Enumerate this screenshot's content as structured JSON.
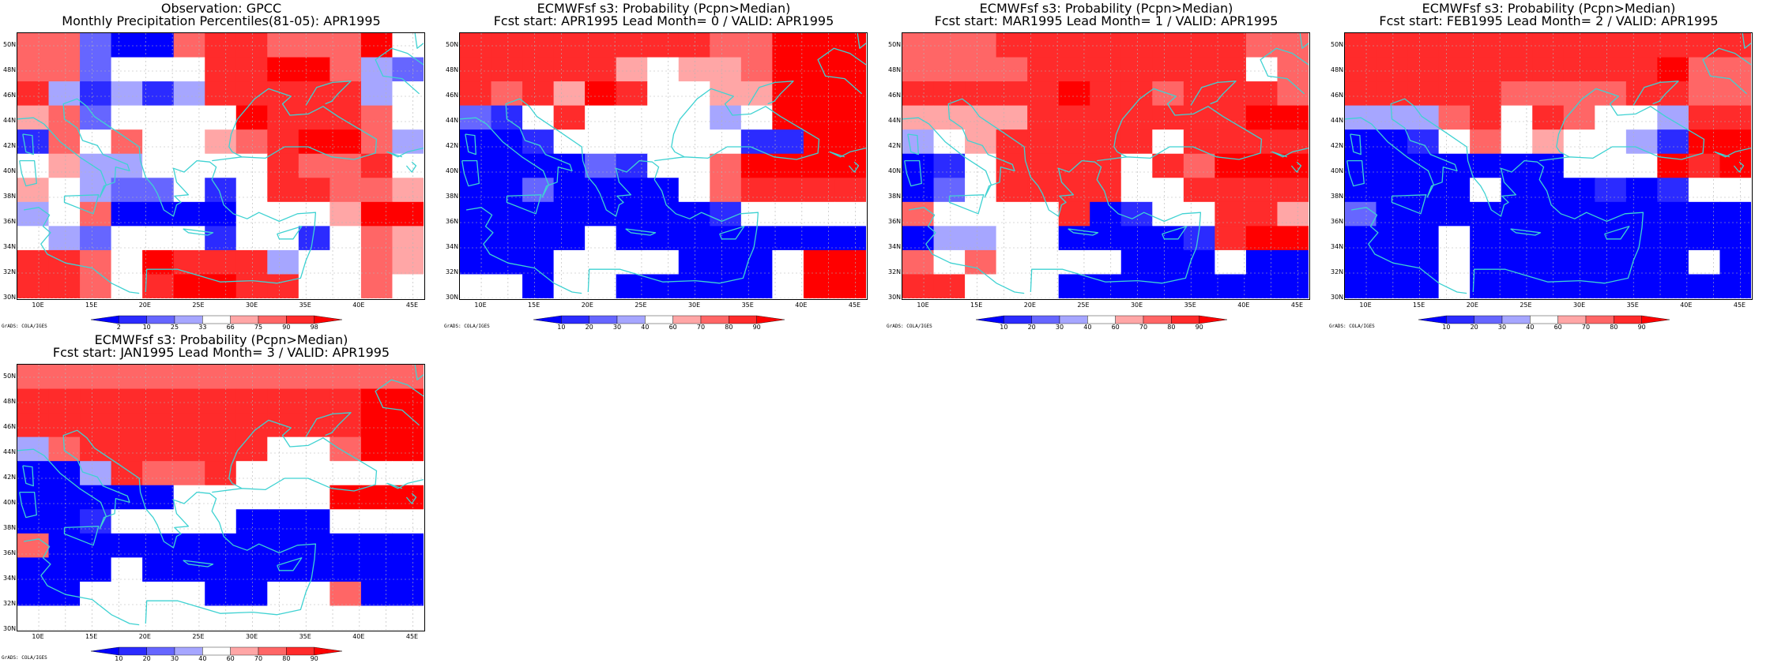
{
  "colors": {
    "levels": [
      "#0000ff",
      "#2b2bff",
      "#6666ff",
      "#a6a6ff",
      "#ffffff",
      "#ffa6a6",
      "#ff6666",
      "#ff2b2b",
      "#ff0000"
    ],
    "coast": "#3fd2d2",
    "grid": "#b4b4b4"
  },
  "map": {
    "lon_range": [
      8,
      46
    ],
    "lat_range": [
      30,
      51
    ],
    "x_ticks": [
      "10E",
      "15E",
      "20E",
      "25E",
      "30E",
      "35E",
      "40E",
      "45E"
    ],
    "y_ticks": [
      "30N",
      "32N",
      "34N",
      "36N",
      "38N",
      "40N",
      "42N",
      "44N",
      "46N",
      "48N",
      "50N"
    ],
    "grid_step_deg": 2.5
  },
  "credit": "GrADS: COLA/IGES",
  "panels": [
    {
      "title1": "Observation: GPCC",
      "title2": "Monthly Precipitation Percentiles(81-05): APR1995",
      "colorbar_labels": [
        "2",
        "10",
        "25",
        "33",
        "66",
        "75",
        "90",
        "98"
      ],
      "grid": [
        "6620067766684",
        "6624447788632",
        "7313137777734",
        "5624444877764",
        "1646445678863",
        "4533444476674",
        "5432241477665",
        "3460000444588",
        "4324441441465",
        "7764877734465",
        "7764788774464"
      ]
    },
    {
      "title1": "ECMWFsf s3: Probability (Pcpn>Median)",
      "title2": "Fcst start: APR1995  Lead Month= 0 / VALID: APR1995",
      "colorbar_labels": [
        "10",
        "20",
        "30",
        "40",
        "60",
        "70",
        "80",
        "90"
      ],
      "grid": [
        "7777777766888",
        "7777754556888",
        "7675874455888",
        "2147444434888",
        "0014444441188",
        "0000214468888",
        "0020000467777",
        "0000000014444",
        "0000400000000",
        "0004444000488",
        "4404400000488"
      ]
    },
    {
      "title1": "ECMWFsf s3: Probability (Pcpn>Median)",
      "title2": "Fcst start: MAR1995  Lead Month= 1 / VALID: APR1995",
      "colorbar_labels": [
        "10",
        "20",
        "30",
        "40",
        "60",
        "70",
        "80",
        "90"
      ],
      "grid": [
        "6667777777766",
        "6666777777746",
        "7777787767776",
        "5555777777788",
        "3457777747777",
        "0147777476888",
        "0247777447777",
        "6444470144775",
        "0334400001788",
        "6464444000400",
        "7744400000000"
      ]
    },
    {
      "title1": "ECMWFsf s3: Probability (Pcpn>Median)",
      "title2": "Fcst start: FEB1995  Lead Month= 2 / VALID: APR1995",
      "colorbar_labels": [
        "10",
        "20",
        "30",
        "40",
        "60",
        "70",
        "80",
        "90"
      ],
      "grid": [
        "7777777777777",
        "7777777777866",
        "7777766667766",
        "3336747644377",
        "0014645443188",
        "0000000444878",
        "0000400010144",
        "2000000000000",
        "0004000000000",
        "0004000000040",
        "0004000000000"
      ]
    },
    {
      "title1": "ECMWFsf s3: Probability (Pcpn>Median)",
      "title2": "Fcst start: JAN1995  Lead Month= 3 / VALID: APR1995",
      "colorbar_labels": [
        "10",
        "20",
        "30",
        "40",
        "60",
        "70",
        "80",
        "90"
      ],
      "grid": [
        "6666666666666",
        "7777777777788",
        "7777777777788",
        "3677777744688",
        "0037667444444",
        "0000044444888",
        "0014444000444",
        "6000000000000",
        "0004000000000",
        "0044440044600",
        "4444444444444"
      ]
    }
  ]
}
